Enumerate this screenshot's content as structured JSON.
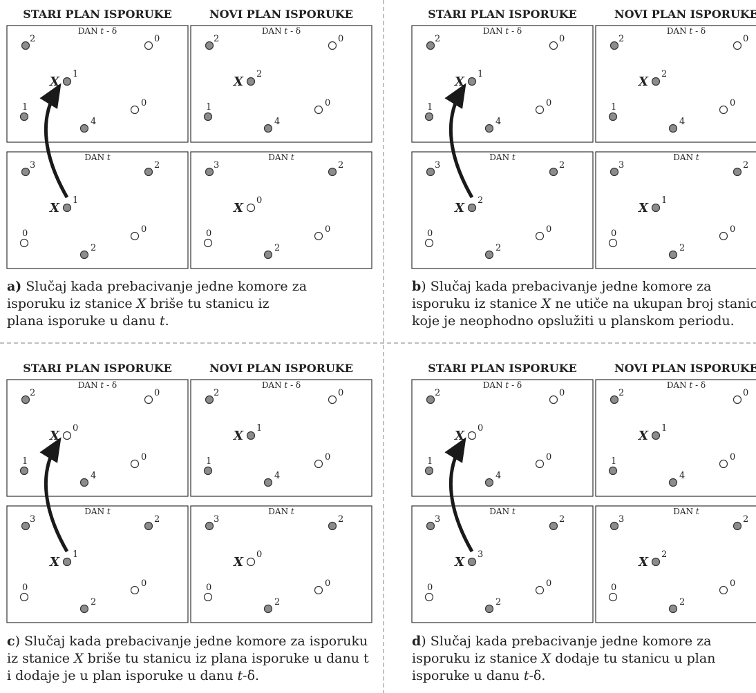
{
  "labels": {
    "old_plan": "STARI PLAN ISPORUKE",
    "new_plan": "NOVI PLAN ISPORUKE",
    "day_t_minus_delta_prefix": "DAN ",
    "day_t_minus_delta_t": "t",
    "day_t_minus_delta_suffix": " - δ",
    "day_t_prefix": "DAN ",
    "day_t_t": "t",
    "station_x": "X"
  },
  "colors": {
    "visited_fill": "#8c8c8c",
    "unvisited_fill": "#ffffff",
    "stroke": "#333333",
    "divider": "#999999",
    "arrow": "#1a1a1a"
  },
  "panels": [
    {
      "id": "a",
      "old": {
        "top": {
          "n1": "2",
          "n2": "0",
          "n3": "1",
          "n4": "4",
          "n5": "0",
          "x": "1"
        },
        "bottom": {
          "n1": "3",
          "n2": "2",
          "n3": "0",
          "n4": "2",
          "n5": "0",
          "x": "1"
        }
      },
      "new": {
        "top": {
          "n1": "2",
          "n2": "0",
          "n3": "1",
          "n4": "4",
          "n5": "0",
          "x": "2"
        },
        "bottom": {
          "n1": "3",
          "n2": "2",
          "n3": "0",
          "n4": "2",
          "n5": "0",
          "x": "0"
        }
      },
      "caption": {
        "letter": "a)",
        "line1": " Slučaj kada prebacivanje jedne komore za",
        "line2_a": "isporuku iz stanice ",
        "line2_x": "X",
        "line2_b": " briše tu stanicu iz",
        "line3_a": "plana isporuke u danu ",
        "line3_t": "t",
        "line3_b": "."
      }
    },
    {
      "id": "b",
      "old": {
        "top": {
          "n1": "2",
          "n2": "0",
          "n3": "1",
          "n4": "4",
          "n5": "0",
          "x": "1"
        },
        "bottom": {
          "n1": "3",
          "n2": "2",
          "n3": "0",
          "n4": "2",
          "n5": "0",
          "x": "2"
        }
      },
      "new": {
        "top": {
          "n1": "2",
          "n2": "0",
          "n3": "1",
          "n4": "4",
          "n5": "0",
          "x": "2"
        },
        "bottom": {
          "n1": "3",
          "n2": "2",
          "n3": "0",
          "n4": "2",
          "n5": "0",
          "x": "1"
        }
      },
      "caption": {
        "letter": "b",
        "line1": ") Slučaj kada prebacivanje jedne komore za",
        "line2_a": "isporuku iz stanice ",
        "line2_x": "X",
        "line2_b": " ne utiče na ukupan broj stanica",
        "line3_a": "koje je neophodno opslužiti u planskom periodu.",
        "line3_t": "",
        "line3_b": ""
      }
    },
    {
      "id": "c",
      "old": {
        "top": {
          "n1": "2",
          "n2": "0",
          "n3": "1",
          "n4": "4",
          "n5": "0",
          "x": "0"
        },
        "bottom": {
          "n1": "3",
          "n2": "2",
          "n3": "0",
          "n4": "2",
          "n5": "0",
          "x": "1"
        }
      },
      "new": {
        "top": {
          "n1": "2",
          "n2": "0",
          "n3": "1",
          "n4": "4",
          "n5": "0",
          "x": "1"
        },
        "bottom": {
          "n1": "3",
          "n2": "2",
          "n3": "0",
          "n4": "2",
          "n5": "0",
          "x": "0"
        }
      },
      "caption": {
        "letter": "c",
        "line1": ") Slučaj kada prebacivanje jedne komore za isporuku",
        "line2_a": "iz stanice ",
        "line2_x": "X",
        "line2_b": " briše tu stanicu iz plana isporuke u danu t",
        "line3_a": "i dodaje je u plan isporuke u danu ",
        "line3_t": "t",
        "line3_b": "-δ."
      }
    },
    {
      "id": "d",
      "old": {
        "top": {
          "n1": "2",
          "n2": "0",
          "n3": "1",
          "n4": "4",
          "n5": "0",
          "x": "0"
        },
        "bottom": {
          "n1": "3",
          "n2": "2",
          "n3": "0",
          "n4": "2",
          "n5": "0",
          "x": "3"
        }
      },
      "new": {
        "top": {
          "n1": "2",
          "n2": "0",
          "n3": "1",
          "n4": "4",
          "n5": "0",
          "x": "1"
        },
        "bottom": {
          "n1": "3",
          "n2": "2",
          "n3": "0",
          "n4": "2",
          "n5": "0",
          "x": "2"
        }
      },
      "caption": {
        "letter": "d",
        "line1": ") Slučaj kada prebacivanje jedne komore za",
        "line2_a": "isporuku iz stanice ",
        "line2_x": "X",
        "line2_b": " dodaje tu stanicu u plan",
        "line3_a": "isporuke u danu ",
        "line3_t": "t",
        "line3_b": "-δ."
      }
    }
  ]
}
